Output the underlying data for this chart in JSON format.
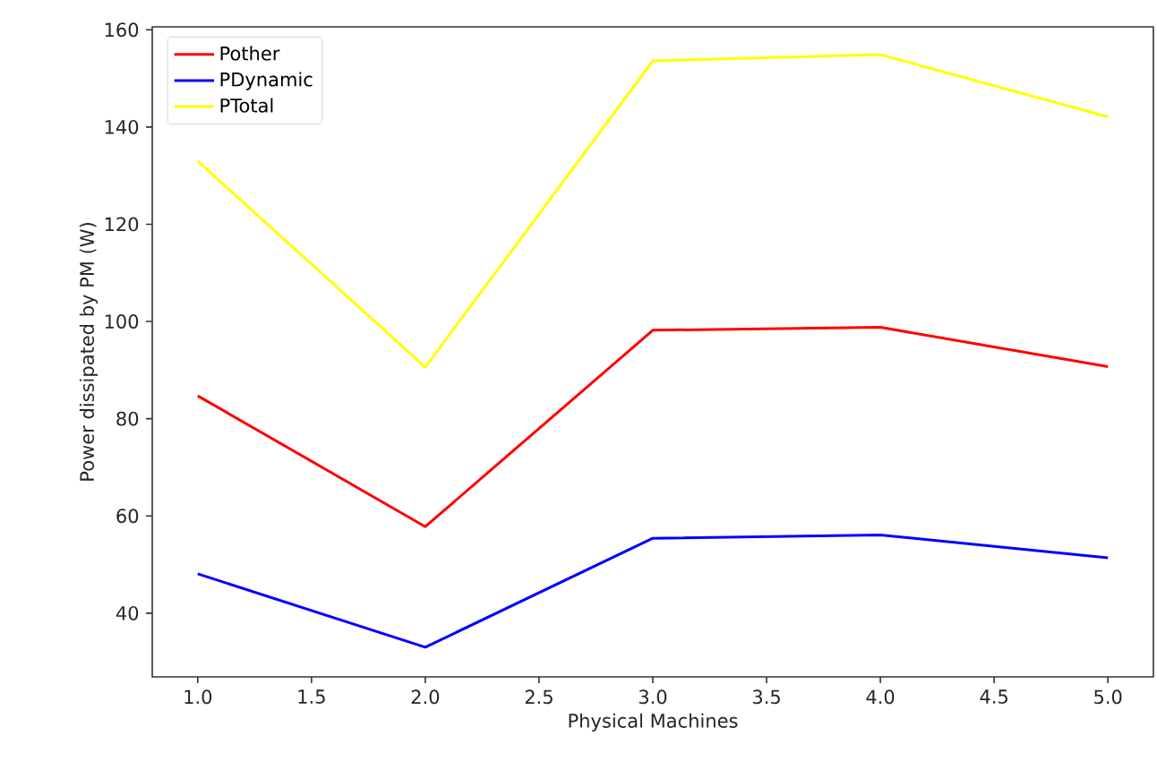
{
  "chart_data": {
    "type": "line",
    "xlabel": "Physical Machines",
    "ylabel": "Power dissipated by PM (W)",
    "x": [
      1,
      2,
      3,
      4,
      5
    ],
    "series": [
      {
        "name": "Pother",
        "color": "#ff0000",
        "values": [
          84.7,
          57.8,
          98.2,
          98.8,
          90.7
        ]
      },
      {
        "name": "PDynamic",
        "color": "#0000ff",
        "values": [
          48.1,
          33.0,
          55.4,
          56.1,
          51.4
        ]
      },
      {
        "name": "PTotal",
        "color": "#ffff00",
        "values": [
          133.0,
          90.6,
          153.6,
          154.9,
          142.1
        ]
      }
    ],
    "xlim": [
      0.8,
      5.2
    ],
    "ylim": [
      26.9,
      160.6
    ],
    "xticks": [
      {
        "value": 1,
        "label": "1.0"
      },
      {
        "value": 1.5,
        "label": "1.5"
      },
      {
        "value": 2,
        "label": "2.0"
      },
      {
        "value": 2.5,
        "label": "2.5"
      },
      {
        "value": 3,
        "label": "3.0"
      },
      {
        "value": 3.5,
        "label": "3.5"
      },
      {
        "value": 4,
        "label": "4.0"
      },
      {
        "value": 4.5,
        "label": "4.5"
      },
      {
        "value": 5,
        "label": "5.0"
      }
    ],
    "yticks": [
      40,
      60,
      80,
      100,
      120,
      140,
      160
    ],
    "legend": "top left",
    "grid": false,
    "marker": "none",
    "line_style": "solid"
  }
}
